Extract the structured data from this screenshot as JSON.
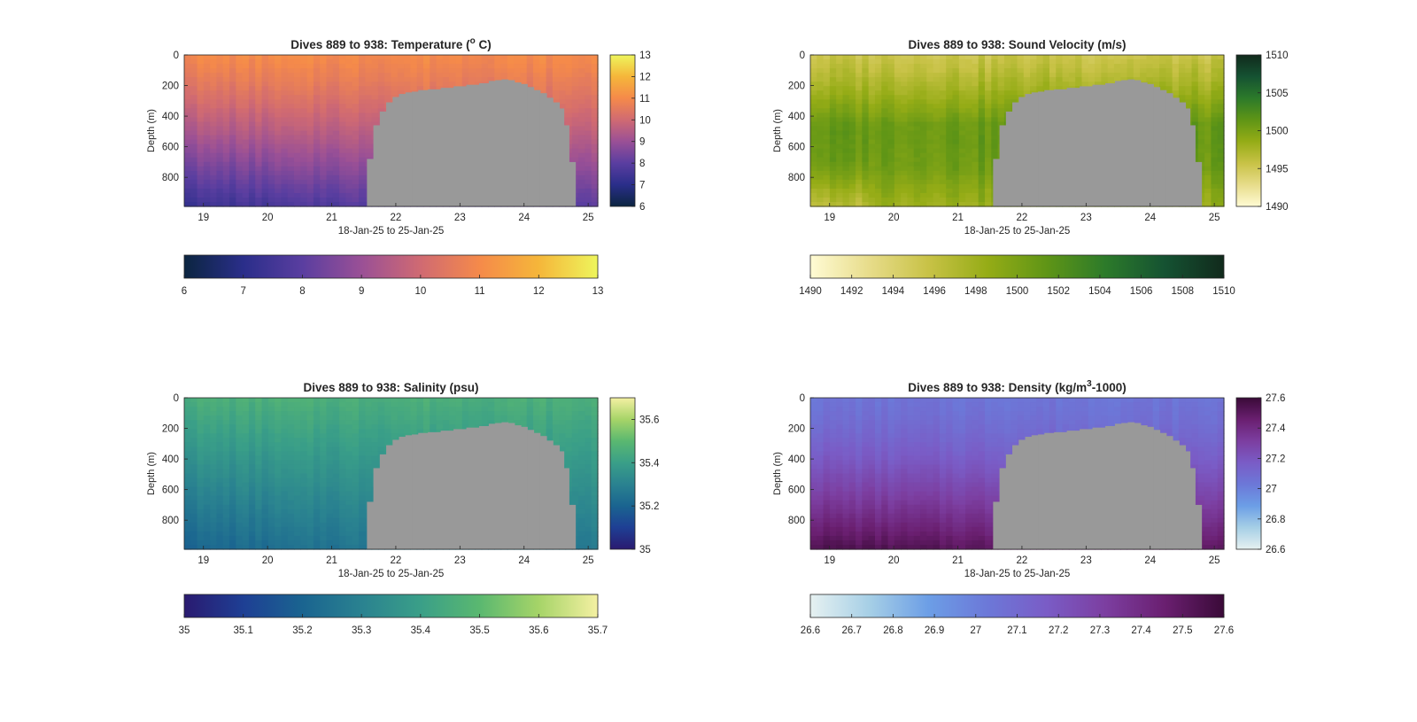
{
  "figure": {
    "background": "#ffffff",
    "mask_color": "#999999",
    "axis_color": "#262626"
  },
  "chart_data": [
    {
      "id": "temperature",
      "type": "heatmap",
      "title": "Dives 889 to 938: Temperature (",
      "title_sup": "o",
      "title_tail": " C)",
      "xlabel": "18-Jan-25 to 25-Jan-25",
      "ylabel": "Depth (m)",
      "xlim": [
        18.7,
        25.15
      ],
      "ylim": [
        0,
        990
      ],
      "y_reversed": true,
      "xticks": [
        19,
        20,
        21,
        22,
        23,
        24,
        25
      ],
      "xtick_labels": [
        "19",
        "20",
        "21",
        "22",
        "23",
        "24",
        "25"
      ],
      "yticks": [
        0,
        200,
        400,
        600,
        800
      ],
      "ytick_labels": [
        "0",
        "200",
        "400",
        "600",
        "800"
      ],
      "colormap": "thermal",
      "colormap_stops": [
        "#0b2540",
        "#2a2e8a",
        "#5a3ea0",
        "#9a5096",
        "#d06a72",
        "#f58a4a",
        "#f5b63a",
        "#eef55c"
      ],
      "clim": [
        6,
        13
      ],
      "colorbar_right_ticks": [
        6,
        7,
        8,
        9,
        10,
        11,
        12,
        13
      ],
      "colorbar_right_labels": [
        "6",
        "7",
        "8",
        "9",
        "10",
        "11",
        "12",
        "13"
      ],
      "colorbar_bottom_ticks": [
        6,
        7,
        8,
        9,
        10,
        11,
        12,
        13
      ],
      "colorbar_bottom_labels": [
        "6",
        "7",
        "8",
        "9",
        "10",
        "11",
        "12",
        "13"
      ],
      "field": {
        "surface": 11.0,
        "deep": 8.0,
        "west_offset": 0.7,
        "gradient_power": 1.2
      },
      "seafloor_mask": {
        "x": [
          21.55,
          21.65,
          21.75,
          21.85,
          21.95,
          22.05,
          22.15,
          22.25,
          22.35,
          22.5,
          22.7,
          22.9,
          23.1,
          23.3,
          23.45,
          23.55,
          23.65,
          23.75,
          23.85,
          23.95,
          24.05,
          24.15,
          24.25,
          24.35,
          24.45,
          24.55,
          24.62,
          24.7,
          24.8
        ],
        "top_depth": [
          680,
          460,
          370,
          310,
          275,
          255,
          245,
          240,
          230,
          225,
          215,
          205,
          195,
          185,
          170,
          165,
          160,
          165,
          180,
          190,
          210,
          230,
          250,
          280,
          310,
          350,
          460,
          700,
          990
        ]
      }
    },
    {
      "id": "sound_velocity",
      "type": "heatmap",
      "title": "Dives 889 to 938: Sound Velocity (m/s)",
      "xlabel": "18-Jan-25 to 25-Jan-25",
      "ylabel": "Depth (m)",
      "xlim": [
        18.7,
        25.15
      ],
      "ylim": [
        0,
        990
      ],
      "y_reversed": true,
      "xticks": [
        19,
        20,
        21,
        22,
        23,
        24,
        25
      ],
      "xtick_labels": [
        "19",
        "20",
        "21",
        "22",
        "23",
        "24",
        "25"
      ],
      "yticks": [
        0,
        200,
        400,
        600,
        800
      ],
      "ytick_labels": [
        "0",
        "200",
        "400",
        "600",
        "800"
      ],
      "colormap": "speed",
      "colormap_stops": [
        "#fffbd4",
        "#e7dc8a",
        "#c8c246",
        "#95ac16",
        "#5f9516",
        "#2c7a2a",
        "#155232",
        "#112a1c"
      ],
      "clim": [
        1490,
        1510
      ],
      "colorbar_right_ticks": [
        1490,
        1495,
        1500,
        1505,
        1510
      ],
      "colorbar_right_labels": [
        "1490",
        "1495",
        "1500",
        "1505",
        "1510"
      ],
      "colorbar_bottom_ticks": [
        1490,
        1492,
        1494,
        1496,
        1498,
        1500,
        1502,
        1504,
        1506,
        1508,
        1510
      ],
      "colorbar_bottom_labels": [
        "1490",
        "1492",
        "1494",
        "1496",
        "1498",
        "1500",
        "1502",
        "1504",
        "1506",
        "1508",
        "1510"
      ],
      "field": {
        "surface": 1495.5,
        "mid": 1501.0,
        "deep": 1499.0
      },
      "seafloor_mask": {
        "x": [
          21.55,
          21.65,
          21.75,
          21.85,
          21.95,
          22.05,
          22.15,
          22.25,
          22.35,
          22.5,
          22.7,
          22.9,
          23.1,
          23.3,
          23.45,
          23.55,
          23.65,
          23.75,
          23.85,
          23.95,
          24.05,
          24.15,
          24.25,
          24.35,
          24.45,
          24.55,
          24.62,
          24.7,
          24.8
        ],
        "top_depth": [
          680,
          460,
          370,
          310,
          275,
          255,
          245,
          240,
          230,
          225,
          215,
          205,
          195,
          185,
          170,
          165,
          160,
          165,
          180,
          190,
          210,
          230,
          250,
          280,
          310,
          350,
          460,
          700,
          990
        ]
      }
    },
    {
      "id": "salinity",
      "type": "heatmap",
      "title": "Dives 889 to 938: Salinity (psu)",
      "xlabel": "18-Jan-25 to 25-Jan-25",
      "ylabel": "Depth (m)",
      "xlim": [
        18.7,
        25.15
      ],
      "ylim": [
        0,
        990
      ],
      "y_reversed": true,
      "xticks": [
        19,
        20,
        21,
        22,
        23,
        24,
        25
      ],
      "xtick_labels": [
        "19",
        "20",
        "21",
        "22",
        "23",
        "24",
        "25"
      ],
      "yticks": [
        0,
        200,
        400,
        600,
        800
      ],
      "ytick_labels": [
        "0",
        "200",
        "400",
        "600",
        "800"
      ],
      "colormap": "haline",
      "colormap_stops": [
        "#2a1a70",
        "#1e3f94",
        "#1a6490",
        "#2a8290",
        "#3a9f88",
        "#5ab870",
        "#a6d468",
        "#f4f0a2"
      ],
      "clim": [
        35.0,
        35.7
      ],
      "colorbar_right_ticks": [
        35.0,
        35.2,
        35.4,
        35.6
      ],
      "colorbar_right_labels": [
        "35",
        "35.2",
        "35.4",
        "35.6"
      ],
      "colorbar_bottom_ticks": [
        35.0,
        35.1,
        35.2,
        35.3,
        35.4,
        35.5,
        35.6,
        35.7
      ],
      "colorbar_bottom_labels": [
        "35",
        "35.1",
        "35.2",
        "35.3",
        "35.4",
        "35.5",
        "35.6",
        "35.7"
      ],
      "field": {
        "surface": 35.46,
        "deep": 35.27,
        "west_offset": 0.07,
        "gradient_power": 1.0
      },
      "seafloor_mask": {
        "x": [
          21.55,
          21.65,
          21.75,
          21.85,
          21.95,
          22.05,
          22.15,
          22.25,
          22.35,
          22.5,
          22.7,
          22.9,
          23.1,
          23.3,
          23.45,
          23.55,
          23.65,
          23.75,
          23.85,
          23.95,
          24.05,
          24.15,
          24.25,
          24.35,
          24.45,
          24.55,
          24.62,
          24.7,
          24.8
        ],
        "top_depth": [
          680,
          460,
          370,
          310,
          275,
          255,
          245,
          240,
          230,
          225,
          215,
          205,
          195,
          185,
          170,
          165,
          160,
          165,
          180,
          190,
          210,
          230,
          250,
          280,
          310,
          350,
          460,
          700,
          990
        ]
      }
    },
    {
      "id": "density",
      "type": "heatmap",
      "title": "Dives 889 to 938: Density (kg/m",
      "title_sup": "3",
      "title_tail": "-1000)",
      "xlabel": "18-Jan-25 to 25-Jan-25",
      "ylabel": "Depth (m)",
      "xlim": [
        18.7,
        25.15
      ],
      "ylim": [
        0,
        990
      ],
      "y_reversed": true,
      "xticks": [
        19,
        20,
        21,
        22,
        23,
        24,
        25
      ],
      "xtick_labels": [
        "19",
        "20",
        "21",
        "22",
        "23",
        "24",
        "25"
      ],
      "yticks": [
        0,
        200,
        400,
        600,
        800
      ],
      "ytick_labels": [
        "0",
        "200",
        "400",
        "600",
        "800"
      ],
      "colormap": "dense",
      "colormap_stops": [
        "#e6f1f1",
        "#a6cfe6",
        "#6c9ee6",
        "#6c78d8",
        "#7a5cc6",
        "#7c3ea0",
        "#6a1f70",
        "#3a0a38"
      ],
      "clim": [
        26.6,
        27.6
      ],
      "colorbar_right_ticks": [
        26.6,
        26.8,
        27.0,
        27.2,
        27.4,
        27.6
      ],
      "colorbar_right_labels": [
        "26.6",
        "26.8",
        "27",
        "27.2",
        "27.4",
        "27.6"
      ],
      "colorbar_bottom_ticks": [
        26.6,
        26.7,
        26.8,
        26.9,
        27.0,
        27.1,
        27.2,
        27.3,
        27.4,
        27.5,
        27.6
      ],
      "colorbar_bottom_labels": [
        "26.6",
        "26.7",
        "26.8",
        "26.9",
        "27",
        "27.1",
        "27.2",
        "27.3",
        "27.4",
        "27.5",
        "27.6"
      ],
      "field": {
        "surface": 27.05,
        "deep": 27.5,
        "west_offset": -0.05,
        "gradient_power": 1.5
      },
      "seafloor_mask": {
        "x": [
          21.55,
          21.65,
          21.75,
          21.85,
          21.95,
          22.05,
          22.15,
          22.25,
          22.35,
          22.5,
          22.7,
          22.9,
          23.1,
          23.3,
          23.45,
          23.55,
          23.65,
          23.75,
          23.85,
          23.95,
          24.05,
          24.15,
          24.25,
          24.35,
          24.45,
          24.55,
          24.62,
          24.7,
          24.8
        ],
        "top_depth": [
          680,
          460,
          370,
          310,
          275,
          255,
          245,
          240,
          230,
          225,
          215,
          205,
          195,
          185,
          170,
          165,
          160,
          165,
          180,
          190,
          210,
          230,
          250,
          280,
          310,
          350,
          460,
          700,
          990
        ]
      }
    }
  ]
}
